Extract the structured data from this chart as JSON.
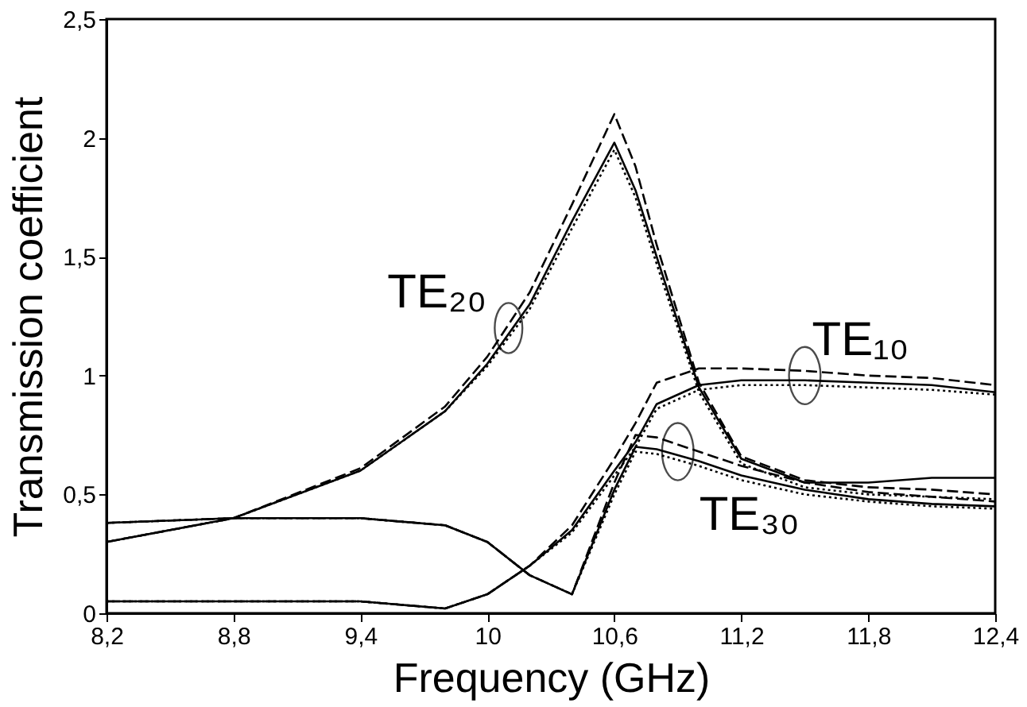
{
  "chart_data": {
    "type": "line",
    "xlabel": "Frequency (GHz)",
    "ylabel": "Transmission coefficient",
    "xlim": [
      8.2,
      12.4
    ],
    "ylim": [
      0,
      2.5
    ],
    "xticks": [
      {
        "value": 8.2,
        "label": "8,2"
      },
      {
        "value": 8.8,
        "label": "8,8"
      },
      {
        "value": 9.4,
        "label": "9,4"
      },
      10,
      {
        "value": 10.6,
        "label": "10,6"
      },
      {
        "value": 11.2,
        "label": "11,2"
      },
      {
        "value": 11.8,
        "label": "11,8"
      },
      {
        "value": 12.4,
        "label": "12,4"
      }
    ],
    "yticks": [
      0,
      {
        "value": 0.5,
        "label": "0,5"
      },
      1,
      {
        "value": 1.5,
        "label": "1,5"
      },
      2,
      {
        "value": 2.5,
        "label": "2,5"
      }
    ],
    "grid": false,
    "marker": "none",
    "x": [
      8.2,
      8.8,
      9.4,
      9.8,
      10.0,
      10.2,
      10.4,
      10.6,
      10.7,
      10.8,
      11.0,
      11.2,
      11.5,
      11.8,
      12.1,
      12.4
    ],
    "series": [
      {
        "color": "#000000",
        "line_style": "solid",
        "values": [
          0.3,
          0.4,
          0.6,
          0.85,
          1.05,
          1.3,
          1.65,
          1.98,
          1.78,
          1.5,
          0.95,
          0.65,
          0.55,
          0.55,
          0.57,
          0.57
        ]
      },
      {
        "color": "#000000",
        "line_style": "dashed",
        "values": [
          0.3,
          0.4,
          0.61,
          0.87,
          1.08,
          1.35,
          1.72,
          2.1,
          1.88,
          1.55,
          0.97,
          0.66,
          0.56,
          0.53,
          0.52,
          0.5
        ]
      },
      {
        "color": "#000000",
        "line_style": "dotted",
        "values": [
          0.3,
          0.4,
          0.6,
          0.85,
          1.04,
          1.28,
          1.62,
          1.95,
          1.75,
          1.47,
          0.93,
          0.63,
          0.53,
          0.5,
          0.49,
          0.48
        ]
      },
      {
        "color": "#000000",
        "line_style": "solid",
        "values": [
          0.05,
          0.05,
          0.05,
          0.02,
          0.08,
          0.2,
          0.35,
          0.6,
          0.72,
          0.88,
          0.96,
          0.98,
          0.98,
          0.97,
          0.96,
          0.93
        ]
      },
      {
        "color": "#000000",
        "line_style": "dashed",
        "values": [
          0.05,
          0.05,
          0.05,
          0.02,
          0.08,
          0.2,
          0.37,
          0.65,
          0.8,
          0.97,
          1.03,
          1.03,
          1.02,
          1.0,
          0.99,
          0.96
        ]
      },
      {
        "color": "#000000",
        "line_style": "dotted",
        "values": [
          0.05,
          0.05,
          0.05,
          0.02,
          0.08,
          0.2,
          0.34,
          0.58,
          0.7,
          0.86,
          0.94,
          0.96,
          0.96,
          0.95,
          0.94,
          0.92
        ]
      },
      {
        "color": "#000000",
        "line_style": "solid",
        "values": [
          0.38,
          0.4,
          0.4,
          0.37,
          0.3,
          0.16,
          0.08,
          0.52,
          0.7,
          0.69,
          0.64,
          0.58,
          0.52,
          0.48,
          0.46,
          0.45
        ]
      },
      {
        "color": "#000000",
        "line_style": "dashed",
        "values": [
          0.38,
          0.4,
          0.4,
          0.37,
          0.3,
          0.16,
          0.08,
          0.55,
          0.75,
          0.74,
          0.68,
          0.62,
          0.55,
          0.51,
          0.49,
          0.47
        ]
      },
      {
        "color": "#000000",
        "line_style": "dotted",
        "values": [
          0.38,
          0.4,
          0.4,
          0.37,
          0.3,
          0.16,
          0.08,
          0.5,
          0.68,
          0.67,
          0.62,
          0.56,
          0.5,
          0.47,
          0.45,
          0.44
        ]
      }
    ],
    "annotations": [
      {
        "text": "TE₂₀",
        "x": 10.1,
        "y": 1.2
      },
      {
        "text": "TE₁₀",
        "x": 11.5,
        "y": 1.0
      },
      {
        "text": "TE₃₀",
        "x": 10.9,
        "y": 0.68
      }
    ]
  }
}
